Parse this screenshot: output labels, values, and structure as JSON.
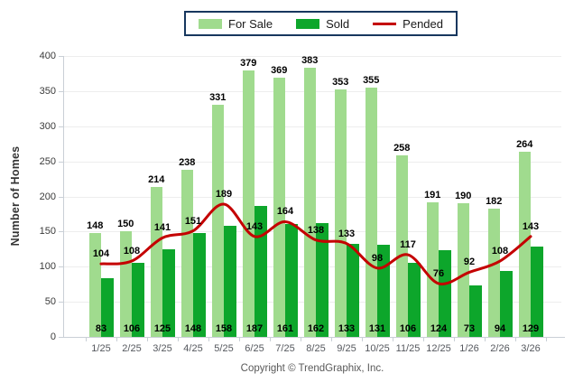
{
  "legend": {
    "for_sale_label": "For Sale",
    "sold_label": "Sold",
    "pended_label": "Pended"
  },
  "colors": {
    "for_sale": "#A0DB8E",
    "sold": "#0DA62B",
    "pended": "#C40000",
    "legend_border": "#17375E",
    "gridline": "#EDEDED",
    "axis_line": "#C9CFD6",
    "data_label": "#000000",
    "tick_label": "#3a3a3a",
    "x_label": "#55585e",
    "footer_text": "#595959"
  },
  "y_axis": {
    "title": "Number of Homes",
    "ticks": [
      0,
      50,
      100,
      150,
      200,
      250,
      300,
      350,
      400
    ],
    "min": 0,
    "max": 400
  },
  "footer": {
    "copyright": "Copyright © TrendGraphix, Inc."
  },
  "chart_data": {
    "type": "bar",
    "title": "",
    "xlabel": "",
    "ylabel": "Number of Homes",
    "ylim": [
      0,
      400
    ],
    "grid": true,
    "legend_position": "top-center",
    "categories": [
      "1/25",
      "2/25",
      "3/25",
      "4/25",
      "5/25",
      "6/25",
      "7/25",
      "8/25",
      "9/25",
      "10/25",
      "11/25",
      "12/25",
      "1/26",
      "2/26",
      "3/26"
    ],
    "series": [
      {
        "name": "For Sale",
        "type": "bar",
        "color": "#A0DB8E",
        "values": [
          148,
          150,
          214,
          238,
          331,
          379,
          369,
          383,
          353,
          355,
          258,
          191,
          190,
          182,
          264
        ]
      },
      {
        "name": "Sold",
        "type": "bar",
        "color": "#0DA62B",
        "values": [
          83,
          106,
          125,
          148,
          158,
          187,
          161,
          162,
          133,
          131,
          106,
          124,
          73,
          94,
          129
        ]
      },
      {
        "name": "Pended",
        "type": "line",
        "color": "#C40000",
        "values": [
          104,
          108,
          141,
          151,
          189,
          143,
          164,
          138,
          133,
          98,
          117,
          76,
          92,
          108,
          143
        ]
      }
    ]
  }
}
